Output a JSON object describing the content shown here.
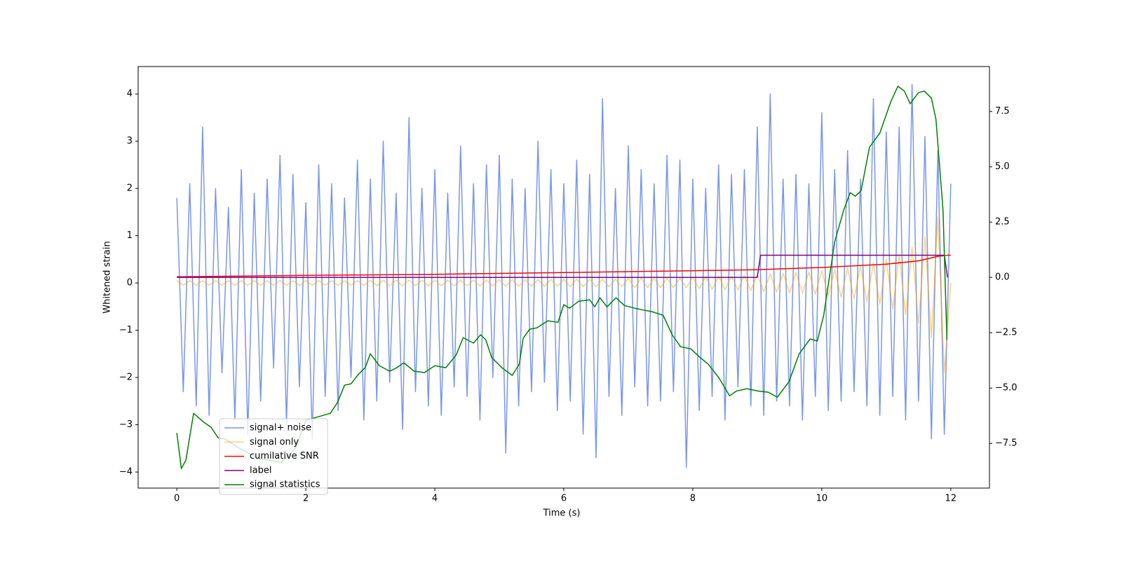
{
  "chart_data": {
    "type": "line",
    "xlabel": "Time (s)",
    "ylabel": "Whitened strain",
    "xlim": [
      -0.6,
      12.6
    ],
    "ylim": [
      -4.34,
      4.58
    ],
    "y2lim": [
      -9.52,
      9.53
    ],
    "xticks": [
      0,
      2,
      4,
      6,
      8,
      10,
      12
    ],
    "yticks": [
      {
        "value": -4,
        "label": "−4"
      },
      {
        "value": -3,
        "label": "−3"
      },
      {
        "value": -2,
        "label": "−2"
      },
      {
        "value": -1,
        "label": "−1"
      },
      0,
      1,
      2,
      3,
      4
    ],
    "y2ticks": [
      {
        "value": -7.5,
        "label": "−7.5"
      },
      {
        "value": -5,
        "label": "−5.0"
      },
      {
        "value": -2.5,
        "label": "−2.5"
      },
      {
        "value": 0,
        "label": "0.0"
      },
      2.5,
      {
        "value": 5,
        "label": "5.0"
      },
      7.5
    ],
    "x": [
      0,
      0.1,
      0.2,
      0.3,
      0.4,
      0.5,
      0.6,
      0.7,
      0.8,
      0.9,
      1,
      1.1,
      1.2,
      1.3,
      1.4,
      1.5,
      1.6,
      1.7,
      1.8,
      1.9,
      2,
      2.1,
      2.2,
      2.3,
      2.4,
      2.5,
      2.6,
      2.7,
      2.8,
      2.9,
      3,
      3.1,
      3.2,
      3.3,
      3.4,
      3.5,
      3.6,
      3.7,
      3.8,
      3.9,
      4,
      4.1,
      4.2,
      4.3,
      4.4,
      4.5,
      4.6,
      4.7,
      4.8,
      4.9,
      5,
      5.1,
      5.2,
      5.3,
      5.4,
      5.5,
      5.6,
      5.7,
      5.8,
      5.9,
      6,
      6.1,
      6.2,
      6.3,
      6.4,
      6.5,
      6.6,
      6.7,
      6.8,
      6.9,
      7,
      7.1,
      7.2,
      7.3,
      7.4,
      7.5,
      7.6,
      7.7,
      7.8,
      7.9,
      8,
      8.1,
      8.2,
      8.3,
      8.4,
      8.5,
      8.6,
      8.7,
      8.8,
      8.9,
      9,
      9.1,
      9.2,
      9.3,
      9.4,
      9.5,
      9.6,
      9.7,
      9.8,
      9.9,
      10,
      10.1,
      10.2,
      10.3,
      10.4,
      10.5,
      10.6,
      10.7,
      10.8,
      10.9,
      11,
      11.1,
      11.2,
      11.3,
      11.4,
      11.5,
      11.6,
      11.7,
      11.8,
      11.9,
      12
    ],
    "series": [
      {
        "name": "signal+ noise",
        "color": "royalblue",
        "alpha": 0.7,
        "values": [
          1.8,
          -2.3,
          2.1,
          -2.6,
          3.3,
          -2.8,
          2.0,
          -1.9,
          1.6,
          -2.9,
          2.4,
          -3.2,
          1.9,
          -2.5,
          2.2,
          -1.8,
          2.7,
          -3.0,
          2.3,
          -2.2,
          1.7,
          -3.3,
          2.5,
          -2.4,
          2.1,
          -2.7,
          1.8,
          -2.0,
          2.6,
          -2.9,
          2.2,
          -2.5,
          3.0,
          -2.1,
          1.9,
          -3.1,
          3.5,
          -2.3,
          2.0,
          -2.6,
          2.4,
          -2.8,
          1.9,
          -2.2,
          2.9,
          -2.4,
          2.1,
          -2.9,
          2.5,
          -2.0,
          2.7,
          -3.6,
          2.2,
          -2.6,
          2.0,
          -2.3,
          3.0,
          -2.1,
          2.4,
          -2.7,
          2.1,
          -2.5,
          2.6,
          -3.2,
          2.3,
          -3.7,
          3.9,
          -2.4,
          2.0,
          -2.8,
          2.9,
          -2.2,
          2.4,
          -2.6,
          2.1,
          -2.5,
          2.7,
          -2.3,
          2.6,
          -3.9,
          2.2,
          -2.7,
          2.0,
          -2.4,
          2.5,
          -2.9,
          2.3,
          -2.2,
          2.4,
          -2.6,
          3.3,
          -2.8,
          4.0,
          -2.5,
          2.2,
          -2.6,
          2.3,
          -2.9,
          2.1,
          -2.4,
          3.6,
          -2.7,
          2.4,
          -2.5,
          2.8,
          -2.3,
          2.2,
          -2.6,
          3.9,
          -2.8,
          3.2,
          -2.4,
          3.3,
          -2.9,
          4.2,
          -2.5,
          3.1,
          -3.3,
          2.8,
          -3.2,
          2.1
        ]
      },
      {
        "name": "signal only",
        "color": "orange",
        "alpha": 0.5,
        "values": [
          0.05,
          -0.05,
          0.05,
          -0.05,
          0.05,
          -0.05,
          0.05,
          -0.05,
          0.05,
          -0.05,
          0.05,
          -0.05,
          0.05,
          -0.05,
          0.05,
          -0.05,
          0.05,
          -0.05,
          0.05,
          -0.05,
          0.05,
          -0.05,
          0.05,
          -0.05,
          0.05,
          -0.05,
          0.05,
          -0.05,
          0.05,
          -0.05,
          0.06,
          -0.06,
          0.06,
          -0.06,
          0.06,
          -0.06,
          0.06,
          -0.06,
          0.06,
          -0.06,
          0.06,
          -0.06,
          0.06,
          -0.06,
          0.06,
          -0.06,
          0.06,
          -0.06,
          0.06,
          -0.06,
          0.07,
          -0.07,
          0.07,
          -0.07,
          0.07,
          -0.07,
          0.07,
          -0.07,
          0.07,
          -0.07,
          0.08,
          -0.08,
          0.08,
          -0.08,
          0.08,
          -0.08,
          0.08,
          -0.08,
          0.08,
          -0.08,
          0.1,
          -0.1,
          0.1,
          -0.1,
          0.1,
          -0.1,
          0.1,
          -0.1,
          0.1,
          -0.1,
          0.12,
          -0.12,
          0.13,
          -0.13,
          0.14,
          -0.14,
          0.15,
          -0.15,
          0.16,
          -0.16,
          0.18,
          -0.18,
          0.19,
          -0.19,
          0.2,
          -0.21,
          0.22,
          -0.22,
          0.23,
          -0.24,
          0.26,
          -0.27,
          0.28,
          -0.3,
          0.32,
          -0.34,
          0.36,
          -0.39,
          0.42,
          -0.45,
          0.5,
          -0.55,
          0.6,
          -0.67,
          0.75,
          -0.85,
          0.98,
          -1.15,
          1.4,
          -1.9,
          0
        ]
      },
      {
        "name": "cumilative SNR",
        "color": "red",
        "axis": "y2",
        "x": [
          0,
          2,
          4,
          6,
          8,
          9,
          10,
          11,
          11.5,
          11.8,
          11.95,
          12
        ],
        "values": [
          0.03,
          0.09,
          0.14,
          0.22,
          0.3,
          0.35,
          0.45,
          0.6,
          0.75,
          0.95,
          1.0,
          1.0
        ]
      },
      {
        "name": "label",
        "color": "purple",
        "axis": "y2",
        "x": [
          0,
          9.0,
          9.05,
          11.9,
          11.95
        ],
        "values": [
          0,
          0,
          1,
          1,
          0
        ]
      },
      {
        "name": "signal statistics",
        "color": "green",
        "axis": "y2",
        "x": [
          0,
          0.07,
          0.14,
          0.26,
          0.42,
          0.53,
          0.64,
          0.75,
          0.97,
          1.29,
          1.62,
          1.84,
          2.0,
          2.38,
          2.49,
          2.6,
          2.7,
          2.81,
          2.92,
          3.0,
          3.14,
          3.3,
          3.41,
          3.52,
          3.68,
          3.84,
          4.0,
          4.17,
          4.33,
          4.44,
          4.6,
          4.71,
          4.79,
          4.88,
          5.04,
          5.2,
          5.31,
          5.37,
          5.47,
          5.58,
          5.75,
          5.91,
          6.0,
          6.09,
          6.23,
          6.4,
          6.48,
          6.56,
          6.67,
          6.81,
          6.94,
          7.1,
          7.21,
          7.37,
          7.54,
          7.68,
          7.81,
          7.97,
          8.11,
          8.24,
          8.41,
          8.57,
          8.68,
          8.84,
          9.0,
          9.17,
          9.31,
          9.49,
          9.65,
          9.82,
          9.93,
          10.03,
          10.2,
          10.34,
          10.44,
          10.52,
          10.61,
          10.74,
          10.9,
          11.07,
          11.18,
          11.28,
          11.37,
          11.5,
          11.59,
          11.7,
          11.77,
          11.88,
          11.94
        ],
        "values": [
          -7.03,
          -8.64,
          -8.26,
          -6.14,
          -6.55,
          -6.77,
          -7.25,
          -7.31,
          -7.72,
          -8.2,
          -8.35,
          -7.72,
          -6.46,
          -6.14,
          -5.66,
          -4.87,
          -4.81,
          -4.4,
          -4.08,
          -3.45,
          -3.99,
          -4.24,
          -4.08,
          -3.86,
          -4.24,
          -4.3,
          -3.99,
          -4.08,
          -3.51,
          -2.72,
          -2.97,
          -2.59,
          -2.82,
          -3.61,
          -4.08,
          -4.43,
          -3.92,
          -2.75,
          -2.34,
          -2.28,
          -1.96,
          -2.03,
          -1.23,
          -1.39,
          -1.08,
          -1.01,
          -1.33,
          -0.92,
          -1.33,
          -0.92,
          -1.27,
          -1.39,
          -1.46,
          -1.55,
          -1.71,
          -2.59,
          -3.13,
          -3.23,
          -3.61,
          -3.92,
          -4.56,
          -5.35,
          -5.13,
          -5.03,
          -5.13,
          -5.19,
          -5.41,
          -4.72,
          -3.45,
          -2.78,
          -2.88,
          -1.71,
          1.61,
          3.04,
          3.83,
          3.67,
          3.92,
          5.89,
          6.52,
          7.94,
          8.64,
          8.42,
          7.85,
          8.35,
          8.42,
          8.1,
          7.15,
          3.04,
          -2.82
        ]
      }
    ]
  }
}
